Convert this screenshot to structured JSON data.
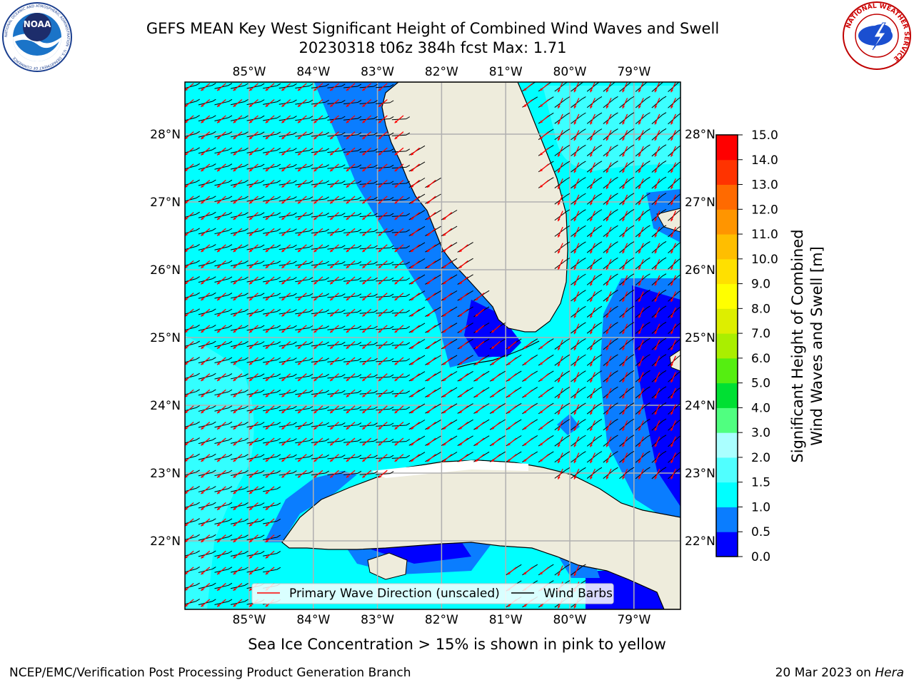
{
  "title_line1": "GEFS MEAN Key West Significant Height of Combined Wind Waves and Swell",
  "title_line2": "20230318 t06z 384h fcst   Max: 1.71",
  "noaa_logo": {
    "text": "NOAA",
    "ring_text": "NATIONAL OCEANIC AND ATMOSPHERIC ADMINISTRATION · U.S. DEPARTMENT OF COMMERCE"
  },
  "nws_logo": {
    "ring_text": "NATIONAL WEATHER SERVICE"
  },
  "map": {
    "lon_labels": [
      "85°W",
      "84°W",
      "83°W",
      "82°W",
      "81°W",
      "80°W",
      "79°W"
    ],
    "lat_labels": [
      "28°N",
      "27°N",
      "26°N",
      "25°N",
      "24°N",
      "23°N",
      "22°N"
    ],
    "legend": {
      "wave_label": "Primary Wave Direction (unscaled)",
      "wind_label": "Wind Barbs"
    },
    "colors": {
      "land": "#eeecdc",
      "wave_arrow": "#ff0000",
      "wind_barb": "#000000",
      "grid": "#b0b0b0"
    }
  },
  "colorbar": {
    "label_line1": "Significant Height of Combined",
    "label_line2": "Wind Waves and Swell [m]",
    "ticks": [
      "0.0",
      "0.5",
      "1.0",
      "1.5",
      "2.0",
      "3.0",
      "4.0",
      "5.0",
      "6.0",
      "7.0",
      "8.0",
      "9.0",
      "10.0",
      "11.0",
      "12.0",
      "13.0",
      "14.0",
      "15.0"
    ],
    "colors": [
      "#0000ff",
      "#0a7dff",
      "#00ffff",
      "#50ffff",
      "#aaffff",
      "#50ff80",
      "#00e033",
      "#55ee11",
      "#aaee00",
      "#ddee00",
      "#ffff00",
      "#ffe000",
      "#ffbe00",
      "#ff9500",
      "#ff6a00",
      "#ff3300",
      "#ff0000"
    ]
  },
  "sea_ice_note": "Sea Ice Concentration > 15% is shown in pink to yellow",
  "footer_left": "NCEP/EMC/Verification Post Processing Product Generation Branch",
  "footer_date": "20 Mar 2023 on ",
  "footer_host": "Hera"
}
